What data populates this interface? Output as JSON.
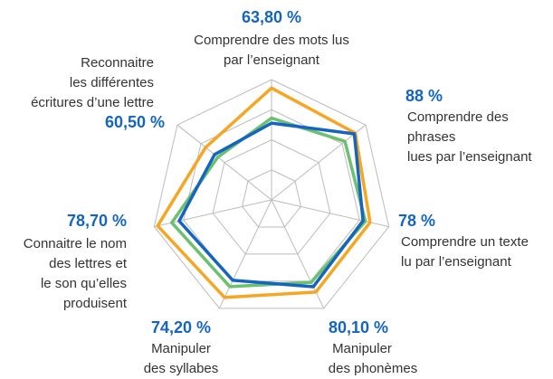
{
  "chart_data": {
    "type": "radar",
    "categories": [
      [
        "Comprendre des mots lus",
        "par l’enseignant"
      ],
      [
        "Comprendre des",
        "phrases",
        "lues par l’enseignant"
      ],
      [
        "Comprendre un texte",
        "lu par l’enseignant"
      ],
      [
        "Manipuler",
        "des phonèmes"
      ],
      [
        "Manipuler",
        "des syllabes"
      ],
      [
        "Connaitre le nom",
        "des lettres et",
        "le son qu’elles",
        "produisent"
      ],
      [
        "Reconnaitre",
        "les différentes",
        "écritures d’une lettre"
      ]
    ],
    "series": [
      {
        "color": "#f5a623",
        "values": [
          93,
          89,
          84,
          85,
          90,
          97,
          70
        ]
      },
      {
        "color": "#6cc070",
        "values": [
          68,
          78,
          80,
          76,
          80,
          85,
          57
        ]
      },
      {
        "color": "#1565c0",
        "values": [
          63.8,
          88,
          78,
          80.1,
          74.2,
          78.7,
          60.5
        ],
        "value_labels": [
          "63,80 %",
          "88 %",
          "78 %",
          "80,10 %",
          "74,20 %",
          "78,70 %",
          "60,50 %"
        ]
      }
    ],
    "ylim": [
      0,
      100
    ],
    "yticks": [
      25,
      50,
      75,
      100
    ],
    "grid": true
  }
}
